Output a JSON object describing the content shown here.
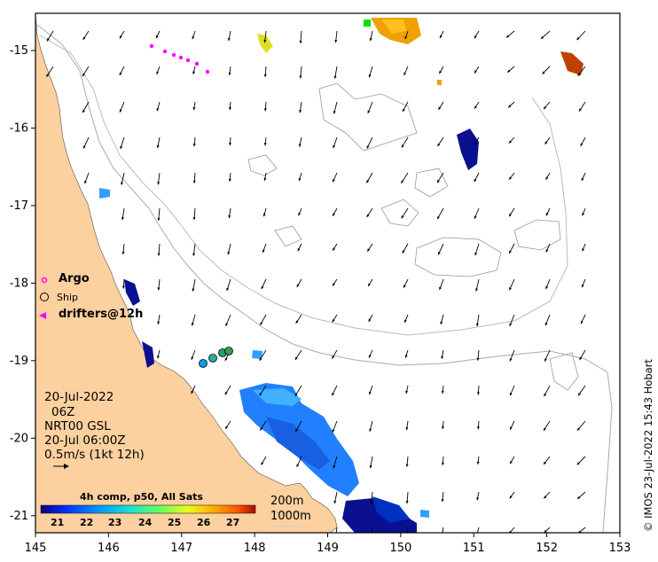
{
  "map": {
    "x_ticks": [
      "145",
      "146",
      "147",
      "148",
      "149",
      "150",
      "151",
      "152",
      "153"
    ],
    "y_ticks": [
      "-15",
      "-16",
      "-17",
      "-18",
      "-19",
      "-20",
      "-21"
    ],
    "lon_range": [
      145,
      153
    ],
    "lat_range": [
      -14.52,
      -21.22
    ],
    "colors": {
      "land": "#fdd09f",
      "frame": "#000000",
      "bathy": "#aaaaaa",
      "argo": "#ff00ff"
    }
  },
  "legend": {
    "argo": "Argo",
    "ship": "Ship",
    "drifters": "drifters@12h"
  },
  "info": {
    "date": "20-Jul-2022",
    "hour": "06Z",
    "product": "NRT00 GSL",
    "valid": "20-Jul 06:00Z",
    "scale": "0.5m/s (1kt 12h)"
  },
  "colorbar": {
    "title": "4h comp, p50, All Sats",
    "ticks": [
      "21",
      "22",
      "23",
      "24",
      "25",
      "26",
      "27"
    ],
    "range": [
      20.5,
      27.5
    ]
  },
  "depth": {
    "shallow": "200m",
    "deep": "1000m"
  },
  "copyright": "© IMOS 23-Jul-2022 15:43 Hobart"
}
